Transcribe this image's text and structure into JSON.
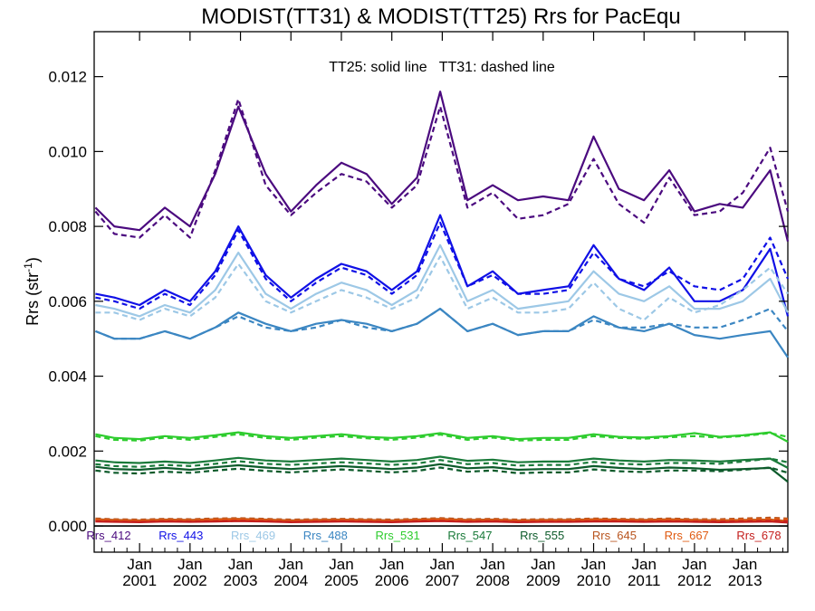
{
  "chart_data": {
    "type": "line",
    "title": "MODIST(TT31) & MODIST(TT25)  Rrs for PacEqu",
    "ylabel": "Rrs (str",
    "ylabel_sup": "-1",
    "ylabel_close": ")",
    "annotation": "TT25: solid line   TT31: dashed line",
    "xlim": [
      2000.1,
      2013.85
    ],
    "ylim": [
      -0.0007,
      0.0132
    ],
    "grid": false,
    "legend_position": "bottom-inside",
    "x_ticks": [
      {
        "month": "Jan",
        "year": "2001",
        "x": 2001
      },
      {
        "month": "Jan",
        "year": "2002",
        "x": 2002
      },
      {
        "month": "Jan",
        "year": "2003",
        "x": 2003
      },
      {
        "month": "Jan",
        "year": "2004",
        "x": 2004
      },
      {
        "month": "Jan",
        "year": "2005",
        "x": 2005
      },
      {
        "month": "Jan",
        "year": "2006",
        "x": 2006
      },
      {
        "month": "Jan",
        "year": "2007",
        "x": 2007
      },
      {
        "month": "Jan",
        "year": "2008",
        "x": 2008
      },
      {
        "month": "Jan",
        "year": "2009",
        "x": 2009
      },
      {
        "month": "Jan",
        "year": "2010",
        "x": 2010
      },
      {
        "month": "Jan",
        "year": "2011",
        "x": 2011
      },
      {
        "month": "Jan",
        "year": "2012",
        "x": 2012
      },
      {
        "month": "Jan",
        "year": "2013",
        "x": 2013
      }
    ],
    "y_ticks": [
      {
        "label": "0.000",
        "v": 0.0
      },
      {
        "label": "0.002",
        "v": 0.002
      },
      {
        "label": "0.004",
        "v": 0.004
      },
      {
        "label": "0.006",
        "v": 0.006
      },
      {
        "label": "0.008",
        "v": 0.008
      },
      {
        "label": "0.010",
        "v": 0.01
      },
      {
        "label": "0.012",
        "v": 0.012
      }
    ],
    "zero_line": 0.0,
    "x": [
      2000.125,
      2000.5,
      2001.0,
      2001.5,
      2002.0,
      2002.5,
      2002.958,
      2003.5,
      2004.0,
      2004.5,
      2005.0,
      2005.5,
      2006.0,
      2006.5,
      2006.958,
      2007.5,
      2008.0,
      2008.5,
      2009.0,
      2009.5,
      2010.0,
      2010.5,
      2011.0,
      2011.5,
      2012.0,
      2012.5,
      2012.958,
      2013.5,
      2013.85
    ],
    "series": [
      {
        "name": "Rrs_412",
        "color": "#4b0a7f",
        "solid": [
          0.0085,
          0.008,
          0.0079,
          0.0085,
          0.008,
          0.0094,
          0.0112,
          0.0094,
          0.0084,
          0.0091,
          0.0097,
          0.0094,
          0.0086,
          0.0093,
          0.0116,
          0.0087,
          0.0091,
          0.0087,
          0.0088,
          0.0087,
          0.0104,
          0.009,
          0.0087,
          0.0095,
          0.0084,
          0.0086,
          0.0085,
          0.0095,
          0.0076
        ],
        "dashed": [
          0.0084,
          0.0078,
          0.0077,
          0.0083,
          0.0077,
          0.0095,
          0.0114,
          0.0091,
          0.0083,
          0.0089,
          0.0094,
          0.0092,
          0.0085,
          0.0091,
          0.0112,
          0.0085,
          0.0089,
          0.0082,
          0.0083,
          0.0086,
          0.0098,
          0.0086,
          0.0081,
          0.0093,
          0.0083,
          0.0084,
          0.0089,
          0.0101,
          0.0084
        ]
      },
      {
        "name": "Rrs_443",
        "color": "#1010e6",
        "solid": [
          0.0062,
          0.0061,
          0.0059,
          0.0063,
          0.006,
          0.0068,
          0.008,
          0.0067,
          0.0061,
          0.0066,
          0.007,
          0.0068,
          0.0063,
          0.0068,
          0.0083,
          0.0064,
          0.0068,
          0.0062,
          0.0063,
          0.0064,
          0.0075,
          0.0066,
          0.0063,
          0.0069,
          0.006,
          0.006,
          0.0063,
          0.0074,
          0.0056
        ],
        "dashed": [
          0.0061,
          0.006,
          0.0058,
          0.0062,
          0.0059,
          0.0067,
          0.0079,
          0.0066,
          0.006,
          0.0065,
          0.0069,
          0.0067,
          0.0062,
          0.0067,
          0.0081,
          0.0064,
          0.0067,
          0.0062,
          0.0062,
          0.0063,
          0.0073,
          0.0066,
          0.0064,
          0.0068,
          0.0064,
          0.0063,
          0.0066,
          0.0077,
          0.0066
        ]
      },
      {
        "name": "Rrs_469",
        "color": "#9dc8e6",
        "solid": [
          0.0059,
          0.0058,
          0.0056,
          0.0059,
          0.0057,
          0.0063,
          0.0073,
          0.0062,
          0.0058,
          0.0062,
          0.0065,
          0.0063,
          0.0059,
          0.0063,
          0.0075,
          0.006,
          0.0063,
          0.0058,
          0.0059,
          0.006,
          0.0068,
          0.0062,
          0.006,
          0.0064,
          0.0058,
          0.0058,
          0.006,
          0.0066,
          0.0057
        ],
        "dashed": [
          0.0057,
          0.0057,
          0.0055,
          0.0058,
          0.0056,
          0.0061,
          0.007,
          0.006,
          0.0057,
          0.006,
          0.0063,
          0.0061,
          0.0058,
          0.0061,
          0.0072,
          0.0058,
          0.0061,
          0.0057,
          0.0057,
          0.0058,
          0.0065,
          0.0058,
          0.0055,
          0.0061,
          0.0057,
          0.0059,
          0.0063,
          0.0069,
          0.0062
        ]
      },
      {
        "name": "Rrs_488",
        "color": "#3b86c2",
        "solid": [
          0.0052,
          0.005,
          0.005,
          0.0052,
          0.005,
          0.0053,
          0.0057,
          0.0054,
          0.0052,
          0.0054,
          0.0055,
          0.0054,
          0.0052,
          0.0054,
          0.0058,
          0.0052,
          0.0054,
          0.0051,
          0.0052,
          0.0052,
          0.0056,
          0.0053,
          0.0052,
          0.0054,
          0.0051,
          0.005,
          0.0051,
          0.0052,
          0.0045
        ],
        "dashed": [
          0.0052,
          0.005,
          0.005,
          0.0052,
          0.005,
          0.0053,
          0.0056,
          0.0053,
          0.0052,
          0.0053,
          0.0055,
          0.0053,
          0.0052,
          0.0054,
          0.0058,
          0.0052,
          0.0054,
          0.0051,
          0.0052,
          0.0052,
          0.0055,
          0.0053,
          0.0053,
          0.0054,
          0.0053,
          0.0053,
          0.0055,
          0.0058,
          0.0052
        ]
      },
      {
        "name": "Rrs_531",
        "color": "#2ecc2e",
        "solid": [
          0.00245,
          0.00235,
          0.00232,
          0.0024,
          0.00235,
          0.00242,
          0.0025,
          0.0024,
          0.00235,
          0.0024,
          0.00245,
          0.00238,
          0.00235,
          0.0024,
          0.00248,
          0.00235,
          0.0024,
          0.00232,
          0.00235,
          0.00235,
          0.00245,
          0.00238,
          0.00236,
          0.0024,
          0.00248,
          0.00238,
          0.00242,
          0.0025,
          0.00225
        ],
        "dashed": [
          0.0024,
          0.0023,
          0.00228,
          0.00236,
          0.0023,
          0.00238,
          0.00245,
          0.00235,
          0.0023,
          0.00236,
          0.0024,
          0.00234,
          0.0023,
          0.00236,
          0.00244,
          0.0023,
          0.00236,
          0.00228,
          0.0023,
          0.0023,
          0.0024,
          0.00235,
          0.00233,
          0.00237,
          0.0024,
          0.00236,
          0.0024,
          0.00248,
          0.00238
        ]
      },
      {
        "name": "Rrs_547",
        "color": "#1a7a3a",
        "solid": [
          0.00175,
          0.0017,
          0.00168,
          0.00172,
          0.00168,
          0.00175,
          0.00182,
          0.00175,
          0.00172,
          0.00176,
          0.0018,
          0.00176,
          0.00172,
          0.00176,
          0.00185,
          0.00174,
          0.00177,
          0.0017,
          0.00172,
          0.00172,
          0.0018,
          0.00175,
          0.00172,
          0.00176,
          0.00175,
          0.00172,
          0.00176,
          0.0018,
          0.00155
        ],
        "dashed": [
          0.00165,
          0.0016,
          0.00158,
          0.00163,
          0.0016,
          0.00166,
          0.00173,
          0.00166,
          0.00163,
          0.00167,
          0.0017,
          0.00167,
          0.00163,
          0.00167,
          0.00176,
          0.00165,
          0.00168,
          0.00161,
          0.00163,
          0.00163,
          0.00171,
          0.00166,
          0.00164,
          0.00168,
          0.00168,
          0.00166,
          0.00172,
          0.0018,
          0.0017
        ]
      },
      {
        "name": "Rrs_555",
        "color": "#0c5a2a",
        "solid": [
          0.00158,
          0.00152,
          0.0015,
          0.00155,
          0.0015,
          0.00157,
          0.00162,
          0.00156,
          0.00152,
          0.00156,
          0.0016,
          0.00156,
          0.00152,
          0.00156,
          0.00165,
          0.00154,
          0.00157,
          0.0015,
          0.00152,
          0.00152,
          0.0016,
          0.00155,
          0.00152,
          0.00156,
          0.00154,
          0.0015,
          0.00152,
          0.00155,
          0.00118
        ],
        "dashed": [
          0.00148,
          0.00142,
          0.0014,
          0.00145,
          0.00142,
          0.00148,
          0.00153,
          0.00147,
          0.00143,
          0.00147,
          0.00151,
          0.00147,
          0.00143,
          0.00147,
          0.00156,
          0.00145,
          0.00148,
          0.00141,
          0.00143,
          0.00143,
          0.00151,
          0.00146,
          0.00144,
          0.00148,
          0.00148,
          0.00146,
          0.0015,
          0.00156,
          0.00142
        ]
      },
      {
        "name": "Rrs_645",
        "color": "#b8541e",
        "solid": [
          0.00018,
          0.00016,
          0.00015,
          0.00017,
          0.00016,
          0.00018,
          0.00019,
          0.00017,
          0.00015,
          0.00016,
          0.00017,
          0.00016,
          0.00015,
          0.00017,
          0.00019,
          0.00016,
          0.00017,
          0.00015,
          0.00016,
          0.00016,
          0.00018,
          0.00017,
          0.00016,
          0.00018,
          0.00016,
          0.00015,
          0.00016,
          0.00017,
          0.00013
        ],
        "dashed": [
          0.0002,
          0.00018,
          0.00017,
          0.00019,
          0.00018,
          0.0002,
          0.00021,
          0.00019,
          0.00017,
          0.00018,
          0.00019,
          0.00018,
          0.00017,
          0.00019,
          0.00021,
          0.00018,
          0.00019,
          0.00017,
          0.00018,
          0.00018,
          0.0002,
          0.00019,
          0.00018,
          0.0002,
          0.00018,
          0.00018,
          0.0002,
          0.00022,
          0.0002
        ]
      },
      {
        "name": "Rrs_667",
        "color": "#e05a10",
        "solid": [
          0.00016,
          0.00014,
          0.00013,
          0.00015,
          0.00014,
          0.00016,
          0.00017,
          0.00015,
          0.00013,
          0.00014,
          0.00015,
          0.00014,
          0.00013,
          0.00015,
          0.00017,
          0.00014,
          0.00015,
          0.00013,
          0.00014,
          0.00014,
          0.00016,
          0.00015,
          0.00014,
          0.00016,
          0.00014,
          0.00013,
          0.00014,
          0.00015,
          0.00011
        ],
        "dashed": [
          0.00017,
          0.00015,
          0.00014,
          0.00016,
          0.00015,
          0.00017,
          0.00018,
          0.00016,
          0.00014,
          0.00015,
          0.00016,
          0.00015,
          0.00014,
          0.00016,
          0.00018,
          0.00015,
          0.00016,
          0.00014,
          0.00015,
          0.00015,
          0.00017,
          0.00016,
          0.00015,
          0.00017,
          0.00015,
          0.00015,
          0.00017,
          0.00019,
          0.00017
        ]
      },
      {
        "name": "Rrs_678",
        "color": "#c4201e",
        "solid": [
          0.00012,
          0.00011,
          0.0001,
          0.00012,
          0.00011,
          0.00012,
          0.00013,
          0.00012,
          0.0001,
          0.00011,
          0.00012,
          0.00011,
          0.0001,
          0.00012,
          0.00013,
          0.00011,
          0.00012,
          0.0001,
          0.00011,
          0.00011,
          0.00012,
          0.00012,
          0.00011,
          0.00012,
          0.00011,
          0.0001,
          0.00011,
          0.00012,
          9e-05
        ],
        "dashed": [
          0.00013,
          0.00012,
          0.00011,
          0.00013,
          0.00012,
          0.00013,
          0.00014,
          0.00013,
          0.00011,
          0.00012,
          0.00013,
          0.00012,
          0.00011,
          0.00013,
          0.00014,
          0.00012,
          0.00013,
          0.00011,
          0.00012,
          0.00012,
          0.00013,
          0.00013,
          0.00012,
          0.00013,
          0.00012,
          0.00012,
          0.00013,
          0.00014,
          0.00013
        ]
      }
    ]
  }
}
